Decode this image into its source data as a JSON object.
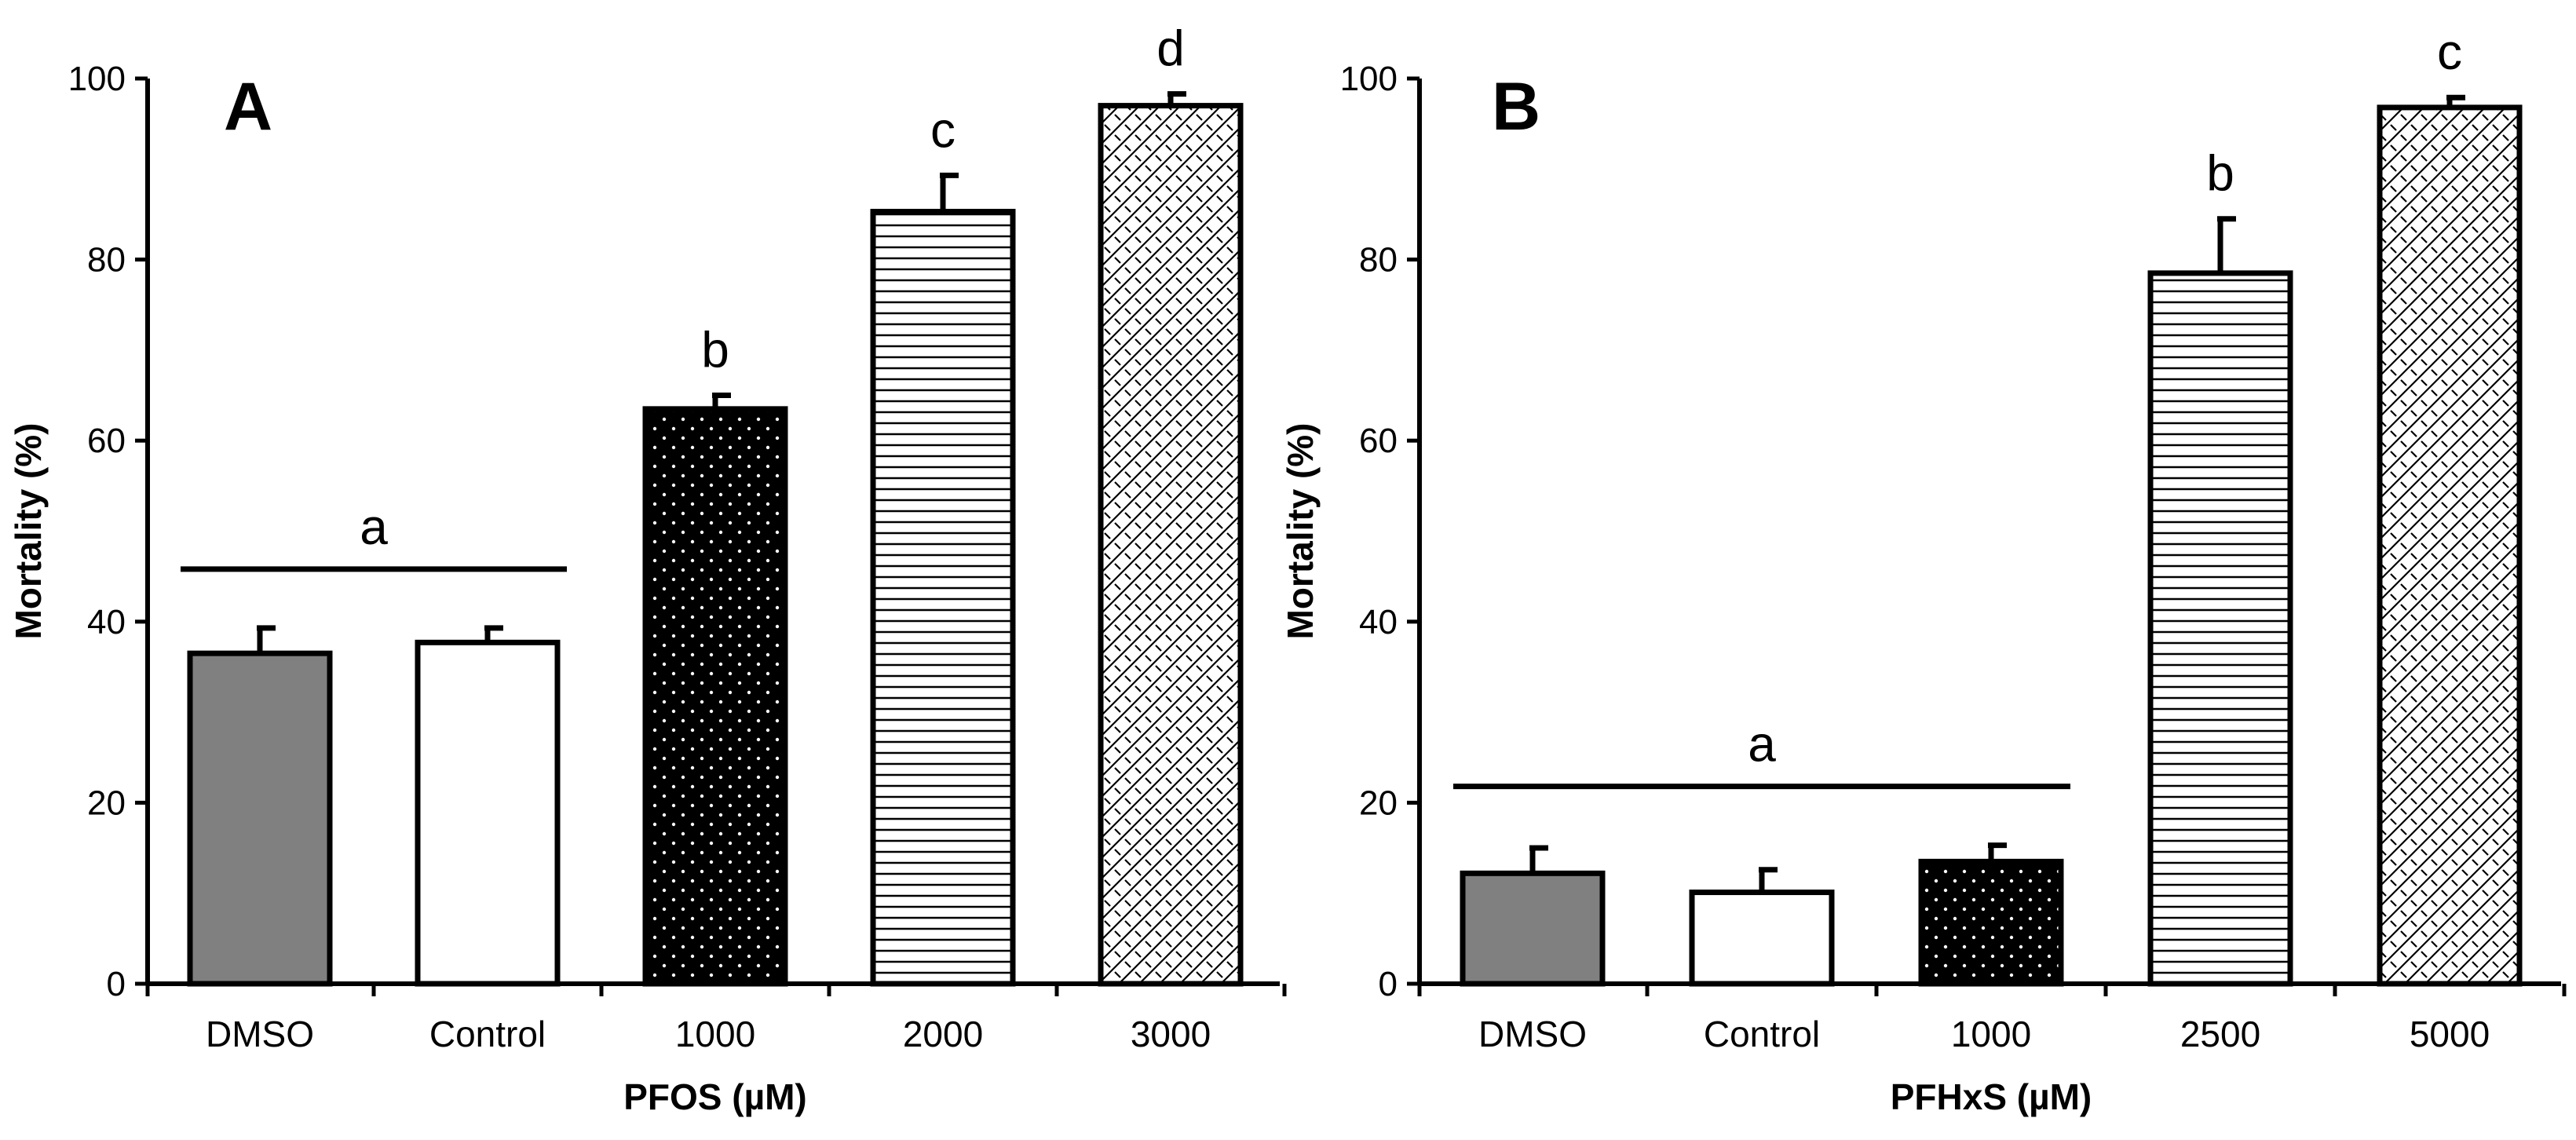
{
  "chart_data": [
    {
      "type": "bar",
      "panel_label": "A",
      "xlabel": "PFOS (µM)",
      "ylabel": "Mortality (%)",
      "ylim": [
        0,
        100
      ],
      "yticks": [
        0,
        20,
        40,
        60,
        80,
        100
      ],
      "categories": [
        "DMSO",
        "Control",
        "1000",
        "2000",
        "3000"
      ],
      "values": [
        36.5,
        37.7,
        63.5,
        85.3,
        97.0
      ],
      "errors": [
        2.8,
        1.6,
        1.5,
        4.0,
        1.3
      ],
      "fills": [
        "solid-gray",
        "solid-white",
        "dotted-black",
        "horizontal-lines",
        "crosshatch"
      ],
      "significance": [
        {
          "letter": "a",
          "span": [
            0,
            1
          ]
        },
        {
          "letter": "b",
          "span": [
            2,
            2
          ]
        },
        {
          "letter": "c",
          "span": [
            3,
            3
          ]
        },
        {
          "letter": "d",
          "span": [
            4,
            4
          ]
        }
      ]
    },
    {
      "type": "bar",
      "panel_label": "B",
      "xlabel": "PFHxS (µM)",
      "ylabel": "Mortality (%)",
      "ylim": [
        0,
        100
      ],
      "yticks": [
        0,
        20,
        40,
        60,
        80,
        100
      ],
      "categories": [
        "DMSO",
        "Control",
        "1000",
        "2500",
        "5000"
      ],
      "values": [
        12.2,
        10.1,
        13.5,
        78.5,
        96.8
      ],
      "errors": [
        2.8,
        2.5,
        1.8,
        6.0,
        1.1
      ],
      "fills": [
        "solid-gray",
        "solid-white",
        "dotted-black",
        "horizontal-lines",
        "crosshatch"
      ],
      "significance": [
        {
          "letter": "a",
          "span": [
            0,
            2
          ]
        },
        {
          "letter": "b",
          "span": [
            3,
            3
          ]
        },
        {
          "letter": "c",
          "span": [
            4,
            4
          ]
        }
      ]
    }
  ],
  "colors": {
    "gray_fill": "#808080",
    "white_fill": "#ffffff",
    "black_fill": "#000000",
    "stroke": "#000000"
  }
}
